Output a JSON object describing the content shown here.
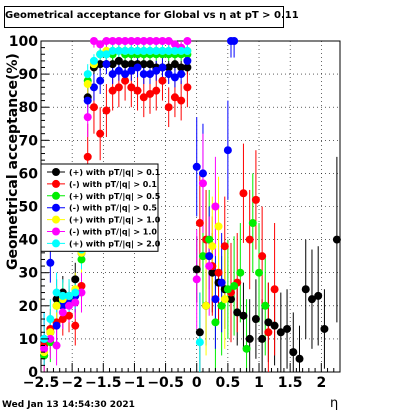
{
  "title": "Geometrical acceptance for Global vs  η at pT > 0.11",
  "ylabel": "Geometrical acceptance(%)",
  "xlabel": "η",
  "date": "Wed Jan 13 14:54:30 2021",
  "chart_data": {
    "type": "scatter",
    "xlim": [
      -2.5,
      2.3
    ],
    "ylim": [
      0,
      100
    ],
    "xticks": [
      "−2.5",
      "−2",
      "−1.5",
      "−1",
      "−0.5",
      "0",
      "0.5",
      "1",
      "1.5",
      "2"
    ],
    "xtick_values": [
      -2.5,
      -2,
      -1.5,
      -1,
      -0.5,
      0,
      0.5,
      1,
      1.5,
      2
    ],
    "yticks": [
      "0",
      "10",
      "20",
      "30",
      "40",
      "50",
      "60",
      "70",
      "80",
      "90",
      "100"
    ],
    "ytick_values": [
      0,
      10,
      20,
      30,
      40,
      50,
      60,
      70,
      80,
      90,
      100
    ],
    "grid": true,
    "legend_position": "left-middle",
    "series": [
      {
        "name": "(+) with pT/|q| > 0.1",
        "color": "#000000",
        "x": [
          -2.45,
          -2.35,
          -2.25,
          -2.15,
          -2.05,
          -1.95,
          -1.85,
          -1.75,
          -1.65,
          -1.55,
          -1.45,
          -1.35,
          -1.25,
          -1.15,
          -1.05,
          -0.95,
          -0.85,
          -0.75,
          -0.65,
          -0.55,
          -0.45,
          -0.35,
          -0.25,
          -0.15,
          0.0,
          0.05,
          0.15,
          0.25,
          0.35,
          0.45,
          0.55,
          0.65,
          0.75,
          0.85,
          0.95,
          1.05,
          1.15,
          1.25,
          1.35,
          1.45,
          1.55,
          1.65,
          1.75,
          1.85,
          1.95,
          2.05,
          2.25
        ],
        "y": [
          5,
          12,
          22,
          24,
          23,
          28,
          36,
          83,
          92,
          93,
          93,
          93,
          94,
          93,
          93,
          93,
          93,
          93,
          92,
          92,
          92,
          93,
          92,
          92,
          31,
          12,
          20,
          30,
          27,
          25,
          22,
          18,
          17,
          10,
          16,
          10,
          15,
          14,
          12,
          13,
          6,
          4,
          25,
          22,
          23,
          13,
          40
        ],
        "yerr": [
          8,
          6,
          6,
          5,
          5,
          5,
          6,
          3,
          2,
          2,
          2,
          2,
          2,
          2,
          2,
          2,
          2,
          2,
          2,
          2,
          2,
          2,
          2,
          2,
          10,
          12,
          12,
          12,
          12,
          12,
          12,
          10,
          10,
          12,
          12,
          12,
          12,
          12,
          12,
          12,
          12,
          10,
          15,
          15,
          15,
          12,
          25
        ]
      },
      {
        "name": "(-) with pT/|q| > 0.1",
        "color": "#ff0000",
        "x": [
          -2.45,
          -2.35,
          -2.25,
          -2.15,
          -2.05,
          -1.95,
          -1.85,
          -1.75,
          -1.65,
          -1.55,
          -1.45,
          -1.35,
          -1.25,
          -1.15,
          -1.05,
          -0.95,
          -0.85,
          -0.75,
          -0.65,
          -0.55,
          -0.45,
          -0.35,
          -0.25,
          -0.15,
          0.05,
          0.15,
          0.25,
          0.35,
          0.45,
          0.55,
          0.65,
          0.75,
          0.85,
          0.95,
          1.05,
          1.15,
          1.25
        ],
        "y": [
          8,
          13,
          15,
          16,
          17,
          14,
          26,
          65,
          80,
          72,
          79,
          85,
          86,
          88,
          86,
          85,
          83,
          84,
          85,
          88,
          80,
          83,
          82,
          86,
          45,
          40,
          32,
          30,
          38,
          24,
          27,
          54,
          40,
          52,
          35,
          12,
          25
        ],
        "yerr": [
          8,
          6,
          6,
          5,
          5,
          6,
          8,
          10,
          8,
          8,
          8,
          6,
          6,
          6,
          6,
          6,
          6,
          6,
          6,
          6,
          6,
          6,
          6,
          6,
          15,
          15,
          15,
          15,
          15,
          15,
          15,
          15,
          15,
          15,
          15,
          15,
          20
        ]
      },
      {
        "name": "(+) with pT/|q| > 0.5",
        "color": "#00ee00",
        "x": [
          -2.45,
          -2.35,
          -2.25,
          -2.15,
          -2.05,
          -1.95,
          -1.85,
          -1.75,
          -1.65,
          -1.55,
          -1.45,
          -1.35,
          -1.25,
          -1.15,
          -1.05,
          -0.95,
          -0.85,
          -0.75,
          -0.65,
          -0.55,
          -0.45,
          -0.35,
          -0.25,
          -0.15,
          0.1,
          0.2,
          0.3,
          0.4,
          0.5,
          0.6,
          0.7,
          0.8,
          0.9,
          1.0,
          1.1
        ],
        "y": [
          5,
          9,
          20,
          21,
          22,
          23,
          34,
          88,
          93,
          96,
          96,
          96,
          97,
          96,
          96,
          96,
          96,
          96,
          96,
          96,
          96,
          96,
          96,
          96,
          35,
          40,
          15,
          20,
          25,
          26,
          30,
          7,
          45,
          30,
          20
        ],
        "yerr": [
          8,
          6,
          6,
          5,
          5,
          5,
          6,
          3,
          2,
          2,
          2,
          2,
          2,
          2,
          2,
          2,
          2,
          2,
          2,
          2,
          2,
          2,
          2,
          2,
          15,
          15,
          15,
          15,
          15,
          15,
          15,
          15,
          15,
          15,
          15
        ]
      },
      {
        "name": "(-) with pT/|q| > 0.5",
        "color": "#0000ff",
        "x": [
          -2.45,
          -2.35,
          -2.25,
          -2.15,
          -2.05,
          -1.95,
          -1.85,
          -1.75,
          -1.65,
          -1.55,
          -1.45,
          -1.35,
          -1.25,
          -1.15,
          -1.05,
          -0.95,
          -0.85,
          -0.75,
          -0.65,
          -0.55,
          -0.45,
          -0.35,
          -0.25,
          -0.15,
          0.0,
          0.1,
          0.2,
          0.3,
          0.4,
          0.5,
          0.55,
          0.6
        ],
        "y": [
          10,
          33,
          14,
          20,
          21,
          23,
          36,
          82,
          86,
          88,
          93,
          90,
          91,
          90,
          91,
          92,
          90,
          90,
          91,
          92,
          90,
          89,
          90,
          94,
          62,
          60,
          35,
          22,
          27,
          67,
          100,
          100
        ],
        "yerr": [
          8,
          6,
          6,
          5,
          5,
          5,
          6,
          4,
          4,
          4,
          3,
          3,
          3,
          3,
          3,
          3,
          3,
          3,
          3,
          3,
          3,
          3,
          3,
          3,
          15,
          15,
          15,
          15,
          15,
          15,
          5,
          5
        ]
      },
      {
        "name": "(+) with pT/|q| > 1.0",
        "color": "#ffff00",
        "x": [
          -2.45,
          -2.35,
          -2.25,
          -2.15,
          -2.05,
          -1.95,
          -1.85,
          -1.75,
          -1.65,
          -1.55,
          -1.45,
          -1.35,
          -1.25,
          -1.15,
          -1.05,
          -0.95,
          -0.85,
          -0.75,
          -0.65,
          -0.55,
          -0.45,
          -0.35,
          -0.25,
          -0.15,
          0.15,
          0.25,
          0.35,
          0.45
        ],
        "y": [
          6,
          12,
          20,
          22,
          23,
          25,
          36,
          87,
          93,
          96,
          97,
          97,
          97,
          97,
          97,
          97,
          97,
          97,
          97,
          97,
          97,
          97,
          97,
          97,
          20,
          38,
          44,
          22
        ],
        "yerr": [
          8,
          6,
          6,
          5,
          5,
          5,
          6,
          3,
          2,
          2,
          2,
          2,
          2,
          2,
          2,
          2,
          2,
          2,
          2,
          2,
          2,
          2,
          2,
          2,
          15,
          15,
          15,
          15
        ]
      },
      {
        "name": "(-) with pT/|q| > 1.0",
        "color": "#ff00ff",
        "x": [
          -2.45,
          -2.35,
          -2.25,
          -2.15,
          -2.05,
          -1.95,
          -1.85,
          -1.75,
          -1.65,
          -1.55,
          -1.45,
          -1.35,
          -1.25,
          -1.15,
          -1.05,
          -0.95,
          -0.85,
          -0.75,
          -0.65,
          -0.55,
          -0.45,
          -0.35,
          -0.25,
          -0.15,
          0.0,
          0.1,
          0.2,
          0.3
        ],
        "y": [
          7,
          10,
          8,
          18,
          20,
          21,
          24,
          77,
          100,
          99,
          100,
          100,
          100,
          100,
          100,
          100,
          100,
          100,
          100,
          100,
          100,
          99,
          98,
          100,
          28,
          57,
          32,
          50
        ],
        "yerr": [
          8,
          6,
          6,
          5,
          5,
          5,
          6,
          6,
          2,
          2,
          2,
          2,
          2,
          2,
          2,
          2,
          2,
          2,
          2,
          2,
          2,
          2,
          2,
          2,
          15,
          15,
          15,
          15
        ]
      },
      {
        "name": "(+) with pT/|q| > 2.0",
        "color": "#00ffff",
        "x": [
          -2.45,
          -2.35,
          -2.25,
          -2.15,
          -2.05,
          -1.95,
          -1.85,
          -1.75,
          -1.65,
          -1.55,
          -1.45,
          -1.35,
          -1.25,
          -1.15,
          -1.05,
          -0.95,
          -0.85,
          -0.75,
          -0.65,
          -0.55,
          -0.45,
          -0.35,
          -0.25,
          -0.15,
          0.05
        ],
        "y": [
          10,
          16,
          24,
          23,
          23,
          24,
          37,
          90,
          94,
          96,
          96,
          97,
          97,
          97,
          97,
          97,
          97,
          97,
          97,
          97,
          97,
          97,
          97,
          97,
          9
        ],
        "yerr": [
          8,
          6,
          6,
          5,
          5,
          5,
          6,
          3,
          2,
          2,
          2,
          2,
          2,
          2,
          2,
          2,
          2,
          2,
          2,
          2,
          2,
          2,
          2,
          2,
          15
        ]
      }
    ]
  }
}
